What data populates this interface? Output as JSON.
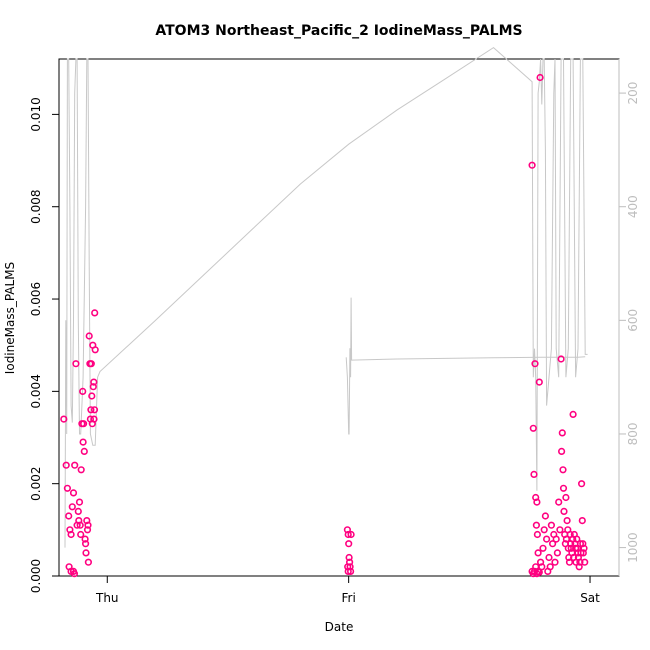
{
  "chart_data": {
    "type": "scatter",
    "title": "ATOM3 Northeast_Pacific_2 IodineMass_PALMS",
    "xlabel": "Date",
    "ylabel": "IodineMass_PALMS",
    "x_ticks": [
      "Thu",
      "Fri",
      "Sat"
    ],
    "ylim": [
      0,
      0.0112
    ],
    "y_ticks": [
      "0.000",
      "0.002",
      "0.004",
      "0.006",
      "0.008",
      "0.010"
    ],
    "y2lim": [
      1050,
      140
    ],
    "y2_ticks": [
      "200",
      "400",
      "600",
      "800",
      "1000"
    ],
    "grid": false,
    "colors": {
      "points": "#ff0080",
      "points_light": "#ff4da6",
      "line": "#c8c8c8",
      "axis": "#000000",
      "right_axis": "#bdbdbd"
    },
    "series": [
      {
        "values": [
          [
            -0.18,
            0.0034
          ],
          [
            -0.17,
            0.0024
          ],
          [
            -0.165,
            0.0019
          ],
          [
            -0.16,
            0.0013
          ],
          [
            -0.155,
            0.001
          ],
          [
            -0.15,
            0.0009
          ],
          [
            -0.145,
            0.0015
          ],
          [
            -0.14,
            0.0018
          ],
          [
            -0.135,
            0.0024
          ],
          [
            -0.13,
            0.0046
          ],
          [
            -0.125,
            0.0011
          ],
          [
            -0.12,
            0.0014
          ],
          [
            -0.118,
            0.0012
          ],
          [
            -0.115,
            0.0016
          ],
          [
            -0.112,
            0.0011
          ],
          [
            -0.11,
            0.0009
          ],
          [
            -0.108,
            0.0023
          ],
          [
            -0.105,
            0.0033
          ],
          [
            -0.102,
            0.004
          ],
          [
            -0.1,
            0.0029
          ],
          [
            -0.098,
            0.0033
          ],
          [
            -0.095,
            0.0027
          ],
          [
            -0.092,
            0.0008
          ],
          [
            -0.09,
            0.0007
          ],
          [
            -0.088,
            0.0005
          ],
          [
            -0.085,
            0.0012
          ],
          [
            -0.082,
            0.001
          ],
          [
            -0.08,
            0.0011
          ],
          [
            -0.078,
            0.0003
          ],
          [
            -0.075,
            0.0052
          ],
          [
            -0.072,
            0.0046
          ],
          [
            -0.07,
            0.0034
          ],
          [
            -0.068,
            0.0036
          ],
          [
            -0.066,
            0.0046
          ],
          [
            -0.064,
            0.0039
          ],
          [
            -0.062,
            0.0033
          ],
          [
            -0.06,
            0.005
          ],
          [
            -0.058,
            0.0041
          ],
          [
            -0.056,
            0.0042
          ],
          [
            -0.055,
            0.0034
          ],
          [
            -0.053,
            0.0036
          ],
          [
            -0.052,
            0.0057
          ],
          [
            -0.05,
            0.0049
          ],
          [
            -0.158,
            0.0002
          ],
          [
            -0.15,
            0.0001
          ],
          [
            -0.14,
            0.0001
          ],
          [
            -0.136,
            5e-05
          ],
          [
            0.995,
            0.001
          ],
          [
            0.998,
            0.0009
          ],
          [
            1.0,
            0.0007
          ],
          [
            1.002,
            0.0004
          ],
          [
            1.004,
            0.0003
          ],
          [
            0.996,
            0.0002
          ],
          [
            0.998,
            0.0001
          ],
          [
            1.006,
            0.0002
          ],
          [
            1.008,
            0.0001
          ],
          [
            1.01,
            0.0009
          ],
          [
            1.76,
            0.0089
          ],
          [
            1.765,
            0.0032
          ],
          [
            1.768,
            0.0022
          ],
          [
            1.772,
            0.0046
          ],
          [
            1.775,
            0.0017
          ],
          [
            1.78,
            0.0016
          ],
          [
            1.778,
            0.0011
          ],
          [
            1.782,
            0.0009
          ],
          [
            1.785,
            0.0005
          ],
          [
            1.79,
            0.0042
          ],
          [
            1.793,
            0.0108
          ],
          [
            1.76,
            0.0001
          ],
          [
            1.765,
            5e-05
          ],
          [
            1.77,
            0.0001
          ],
          [
            1.775,
            0.0002
          ],
          [
            1.78,
            5e-05
          ],
          [
            1.785,
            0.0001
          ],
          [
            1.79,
            8e-05
          ],
          [
            1.795,
            0.0003
          ],
          [
            1.8,
            0.0002
          ],
          [
            1.805,
            0.0006
          ],
          [
            1.81,
            0.001
          ],
          [
            1.815,
            0.0013
          ],
          [
            1.82,
            0.0008
          ],
          [
            1.825,
            0.0001
          ],
          [
            1.83,
            0.0004
          ],
          [
            1.835,
            0.0002
          ],
          [
            1.84,
            0.0011
          ],
          [
            1.845,
            0.0007
          ],
          [
            1.85,
            0.0009
          ],
          [
            1.855,
            0.0003
          ],
          [
            1.86,
            0.0008
          ],
          [
            1.865,
            0.0005
          ],
          [
            1.87,
            0.0016
          ],
          [
            1.875,
            0.001
          ],
          [
            1.88,
            0.0047
          ],
          [
            1.882,
            0.0027
          ],
          [
            1.885,
            0.0031
          ],
          [
            1.888,
            0.0023
          ],
          [
            1.89,
            0.0019
          ],
          [
            1.892,
            0.0014
          ],
          [
            1.895,
            0.0009
          ],
          [
            1.898,
            0.0007
          ],
          [
            1.9,
            0.0017
          ],
          [
            1.902,
            0.0008
          ],
          [
            1.905,
            0.0012
          ],
          [
            1.908,
            0.001
          ],
          [
            1.91,
            0.0006
          ],
          [
            1.912,
            0.0004
          ],
          [
            1.915,
            0.0003
          ],
          [
            1.918,
            0.0009
          ],
          [
            1.92,
            0.0007
          ],
          [
            1.922,
            0.0006
          ],
          [
            1.925,
            0.0005
          ],
          [
            1.928,
            0.0008
          ],
          [
            1.93,
            0.0035
          ],
          [
            1.932,
            0.0004
          ],
          [
            1.935,
            0.0009
          ],
          [
            1.938,
            0.0007
          ],
          [
            1.94,
            0.0006
          ],
          [
            1.942,
            0.0003
          ],
          [
            1.945,
            0.0008
          ],
          [
            1.948,
            0.0006
          ],
          [
            1.95,
            0.0005
          ],
          [
            1.952,
            0.0004
          ],
          [
            1.955,
            0.0002
          ],
          [
            1.958,
            0.0003
          ],
          [
            1.96,
            0.0007
          ],
          [
            1.962,
            0.0005
          ],
          [
            1.965,
            0.002
          ],
          [
            1.968,
            0.0012
          ],
          [
            1.97,
            0.0007
          ],
          [
            1.972,
            0.0005
          ],
          [
            1.975,
            0.0006
          ],
          [
            1.978,
            0.0003
          ]
        ]
      }
    ],
    "line_series": [
      {
        "values": [
          [
            -0.175,
            1000
          ],
          [
            -0.172,
            600
          ],
          [
            -0.17,
            665
          ],
          [
            -0.168,
            800
          ],
          [
            -0.165,
            140
          ],
          [
            -0.16,
            140
          ],
          [
            -0.155,
            400
          ],
          [
            -0.15,
            750
          ],
          [
            -0.145,
            780
          ],
          [
            -0.14,
            600
          ],
          [
            -0.135,
            200
          ],
          [
            -0.13,
            140
          ],
          [
            -0.125,
            140
          ],
          [
            -0.12,
            600
          ],
          [
            -0.115,
            800
          ],
          [
            -0.11,
            800
          ],
          [
            -0.1,
            700
          ],
          [
            -0.09,
            400
          ],
          [
            -0.085,
            140
          ],
          [
            -0.08,
            140
          ],
          [
            -0.075,
            500
          ],
          [
            -0.07,
            800
          ],
          [
            -0.06,
            820
          ],
          [
            -0.05,
            820
          ],
          [
            -0.04,
            700
          ],
          [
            -0.03,
            690
          ],
          [
            0.2,
            600
          ],
          [
            0.4,
            520
          ],
          [
            0.6,
            440
          ],
          [
            0.8,
            360
          ],
          [
            1.0,
            290
          ],
          [
            1.2,
            230
          ],
          [
            1.4,
            175
          ],
          [
            1.6,
            120
          ],
          [
            1.76,
            180
          ],
          [
            1.765,
            700
          ],
          [
            1.77,
            650
          ],
          [
            1.775,
            700
          ],
          [
            1.78,
            900
          ],
          [
            1.785,
            200
          ],
          [
            1.79,
            180
          ],
          [
            1.795,
            140
          ],
          [
            1.8,
            220
          ],
          [
            1.805,
            140
          ],
          [
            1.81,
            140
          ],
          [
            1.815,
            300
          ],
          [
            1.82,
            750
          ],
          [
            1.83,
            700
          ],
          [
            1.84,
            650
          ],
          [
            1.85,
            200
          ],
          [
            1.855,
            140
          ],
          [
            1.86,
            650
          ],
          [
            1.87,
            700
          ],
          [
            1.88,
            140
          ],
          [
            1.89,
            140
          ],
          [
            1.9,
            700
          ],
          [
            1.91,
            650
          ],
          [
            1.92,
            140
          ],
          [
            1.93,
            140
          ],
          [
            1.94,
            700
          ],
          [
            1.95,
            650
          ],
          [
            1.96,
            140
          ],
          [
            1.97,
            140
          ],
          [
            1.98,
            660
          ],
          [
            1.99,
            660
          ]
        ]
      },
      {
        "values": [
          [
            0.99,
            665
          ],
          [
            0.995,
            700
          ],
          [
            1.0,
            800
          ],
          [
            1.002,
            800
          ],
          [
            1.005,
            650
          ],
          [
            1.007,
            650
          ],
          [
            1.008,
            700
          ],
          [
            1.01,
            560
          ],
          [
            1.012,
            670
          ],
          [
            1.2,
            668
          ],
          [
            1.4,
            667
          ],
          [
            1.6,
            666
          ],
          [
            1.8,
            665
          ],
          [
            1.95,
            665
          ],
          [
            1.98,
            664
          ]
        ]
      }
    ]
  }
}
